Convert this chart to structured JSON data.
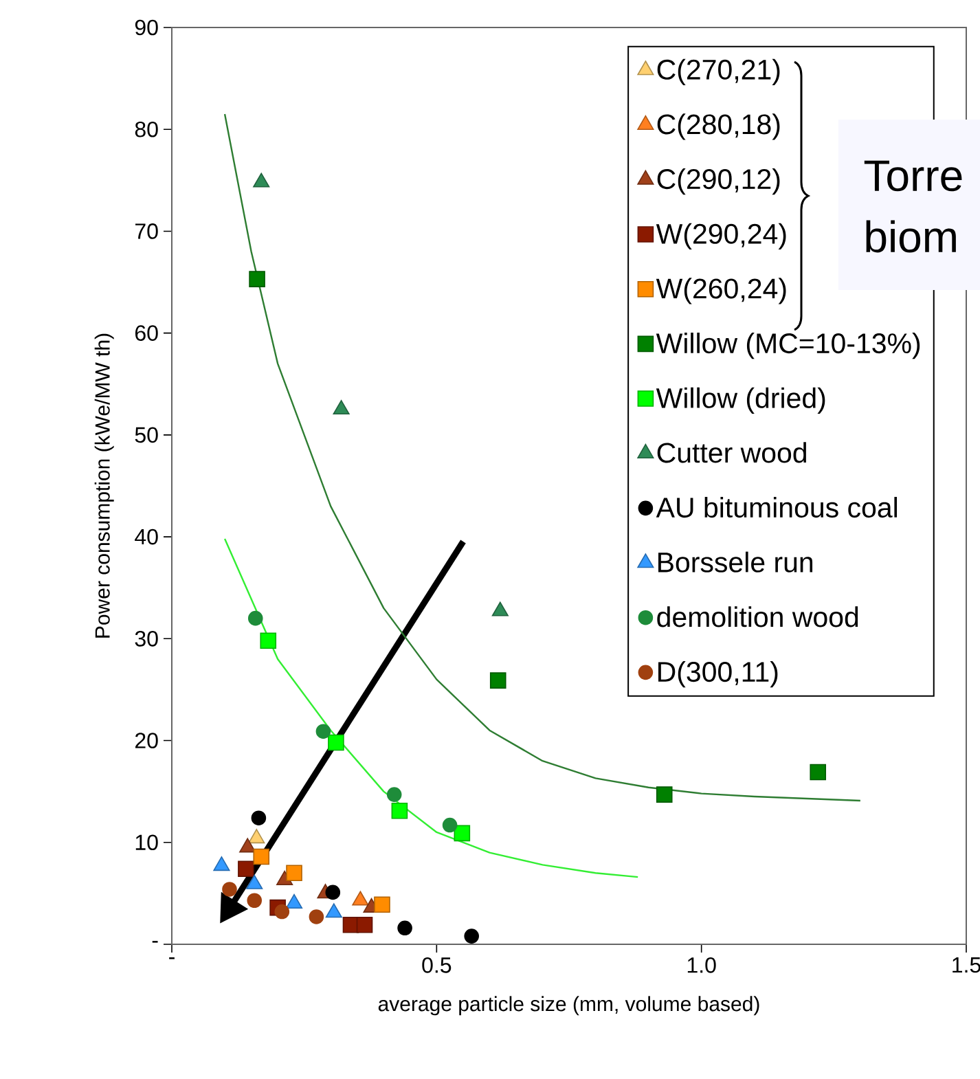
{
  "chart_data": {
    "type": "scatter",
    "xlabel": "average particle size (mm, volume based)",
    "ylabel": "Power consumption (kWe/MW th)",
    "xlim": [
      0,
      1.5
    ],
    "ylim": [
      0,
      90
    ],
    "xticks": [
      {
        "value": 0,
        "label": "-"
      },
      0.5,
      {
        "value": 1,
        "label": "1.0"
      },
      1.5
    ],
    "yticks": [
      {
        "value": 0,
        "label": "-"
      },
      10,
      20,
      30,
      40,
      50,
      60,
      70,
      80,
      90
    ],
    "legend": "top right",
    "grid": false,
    "annotations": [
      "Torre",
      "biom"
    ],
    "series": [
      {
        "name": "C(270,21)",
        "color": "#ffd070",
        "marker": "triangle",
        "x": [
          0.16
        ],
        "values": [
          10.4
        ]
      },
      {
        "name": "C(280,18)",
        "color": "#ff7f20",
        "marker": "triangle",
        "x": [
          0.356
        ],
        "values": [
          4.3
        ]
      },
      {
        "name": "C(290,12)",
        "color": "#a0401a",
        "marker": "triangle",
        "x": [
          0.143,
          0.213,
          0.29,
          0.377
        ],
        "values": [
          9.5,
          6.3,
          5.0,
          3.6
        ]
      },
      {
        "name": "W(290,24)",
        "color": "#8b1a00",
        "marker": "square",
        "x": [
          0.14,
          0.2,
          0.338,
          0.364
        ],
        "values": [
          7.4,
          3.6,
          1.9,
          1.9
        ]
      },
      {
        "name": "W(260,24)",
        "color": "#ff8c00",
        "marker": "square",
        "x": [
          0.169,
          0.231,
          0.397
        ],
        "values": [
          8.6,
          7.0,
          3.9
        ]
      },
      {
        "name": "Willow (MC=10-13%)",
        "color": "#008000",
        "marker": "square",
        "x": [
          0.161,
          0.616,
          0.93,
          1.22
        ],
        "values": [
          65.3,
          25.9,
          14.7,
          16.9
        ]
      },
      {
        "name": "Willow (dried)",
        "color": "#00ff00",
        "marker": "square",
        "x": [
          0.182,
          0.31,
          0.43,
          0.548
        ],
        "values": [
          29.8,
          19.8,
          13.1,
          10.9
        ]
      },
      {
        "name": "Cutter wood",
        "color": "#2e8b57",
        "marker": "triangle",
        "x": [
          0.169,
          0.32,
          0.62
        ],
        "values": [
          74.8,
          52.5,
          32.7
        ]
      },
      {
        "name": "AU bituminous coal",
        "color": "#000000",
        "marker": "circle",
        "x": [
          0.164,
          0.304,
          0.44,
          0.566
        ],
        "values": [
          12.4,
          5.1,
          1.6,
          0.8
        ]
      },
      {
        "name": "Borssele run",
        "color": "#3399ff",
        "marker": "triangle",
        "x": [
          0.094,
          0.156,
          0.231,
          0.306
        ],
        "values": [
          7.7,
          5.9,
          4.0,
          3.1
        ]
      },
      {
        "name": "demolition wood",
        "color": "#1e8c3a",
        "marker": "circle",
        "x": [
          0.158,
          0.286,
          0.42,
          0.525
        ],
        "values": [
          32.0,
          20.9,
          14.7,
          11.7
        ]
      },
      {
        "name": "D(300,11)",
        "color": "#a0400f",
        "marker": "circle",
        "x": [
          0.109,
          0.156,
          0.208,
          0.273
        ],
        "values": [
          5.4,
          4.3,
          3.2,
          2.7
        ]
      },
      {
        "type": "line",
        "color": "#2e7d32",
        "marker": "none",
        "line_style": "solid",
        "x": [
          0.1,
          0.15,
          0.2,
          0.3,
          0.4,
          0.5,
          0.6,
          0.7,
          0.8,
          0.9,
          1.0,
          1.1,
          1.2,
          1.3
        ],
        "values": [
          81.5,
          68,
          57,
          43,
          33,
          26,
          21,
          18,
          16.3,
          15.4,
          14.8,
          14.5,
          14.3,
          14.1
        ]
      },
      {
        "type": "line",
        "color": "#33ee33",
        "marker": "none",
        "line_style": "solid",
        "x": [
          0.1,
          0.2,
          0.3,
          0.4,
          0.5,
          0.6,
          0.7,
          0.8,
          0.88
        ],
        "values": [
          39.8,
          28,
          21,
          15,
          11,
          9,
          7.8,
          7,
          6.6
        ]
      }
    ]
  }
}
